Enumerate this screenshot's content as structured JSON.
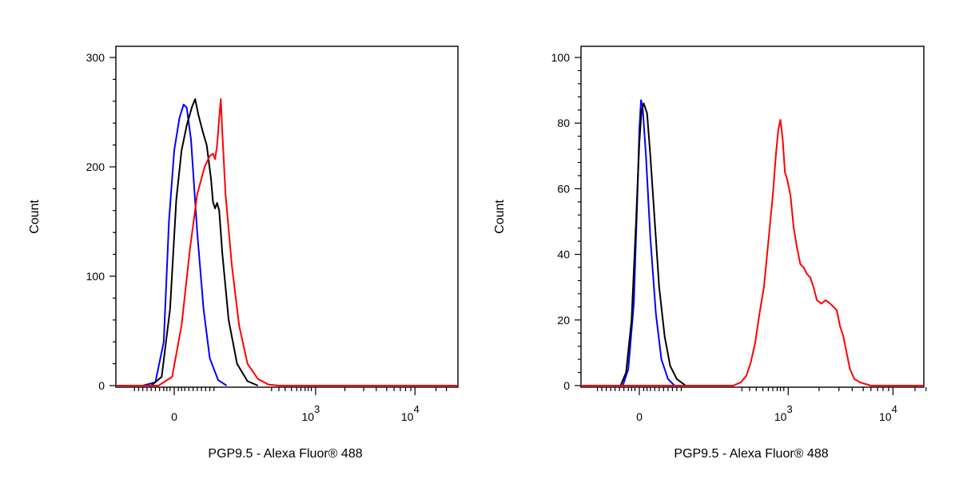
{
  "chart_data": [
    {
      "type": "line",
      "title": "",
      "xlabel": "PGP9.5 - Alexa Fluor® 488",
      "ylabel": "Count",
      "ylim": [
        0,
        300
      ],
      "yticks": [
        0,
        100,
        200,
        300
      ],
      "xticks": [
        {
          "label": "0",
          "exp": ""
        },
        {
          "label": "10",
          "exp": "3"
        },
        {
          "label": "10",
          "exp": "4"
        }
      ],
      "series": [
        {
          "color": "#0000ff",
          "points": [
            [
              -0.3,
              0
            ],
            [
              -0.18,
              3
            ],
            [
              -0.1,
              40
            ],
            [
              -0.05,
              150
            ],
            [
              0,
              215
            ],
            [
              0.05,
              245
            ],
            [
              0.09,
              257
            ],
            [
              0.12,
              254
            ],
            [
              0.16,
              225
            ],
            [
              0.22,
              140
            ],
            [
              0.28,
              70
            ],
            [
              0.34,
              25
            ],
            [
              0.42,
              5
            ],
            [
              0.5,
              0
            ]
          ]
        },
        {
          "color": "#000000",
          "points": [
            [
              -0.22,
              0
            ],
            [
              -0.12,
              8
            ],
            [
              -0.04,
              70
            ],
            [
              0.02,
              170
            ],
            [
              0.07,
              215
            ],
            [
              0.12,
              238
            ],
            [
              0.17,
              255
            ],
            [
              0.2,
              262
            ],
            [
              0.23,
              248
            ],
            [
              0.27,
              233
            ],
            [
              0.31,
              220
            ],
            [
              0.35,
              190
            ],
            [
              0.37,
              168
            ],
            [
              0.39,
              162
            ],
            [
              0.41,
              167
            ],
            [
              0.43,
              160
            ],
            [
              0.46,
              120
            ],
            [
              0.52,
              60
            ],
            [
              0.6,
              20
            ],
            [
              0.7,
              4
            ],
            [
              0.8,
              0
            ]
          ]
        },
        {
          "color": "#ff0000",
          "points": [
            [
              -0.15,
              0
            ],
            [
              -0.02,
              8
            ],
            [
              0.07,
              55
            ],
            [
              0.15,
              125
            ],
            [
              0.22,
              175
            ],
            [
              0.29,
              200
            ],
            [
              0.34,
              210
            ],
            [
              0.37,
              212
            ],
            [
              0.39,
              207
            ],
            [
              0.41,
              220
            ],
            [
              0.43,
              245
            ],
            [
              0.445,
              262
            ],
            [
              0.46,
              230
            ],
            [
              0.49,
              175
            ],
            [
              0.55,
              110
            ],
            [
              0.62,
              55
            ],
            [
              0.7,
              20
            ],
            [
              0.8,
              6
            ],
            [
              0.9,
              1
            ],
            [
              1.0,
              0
            ],
            [
              3.65,
              0
            ]
          ]
        }
      ]
    },
    {
      "type": "line",
      "title": "",
      "xlabel": "PGP9.5 - Alexa Fluor® 488",
      "ylabel": "Count",
      "ylim": [
        0,
        100
      ],
      "yticks": [
        0,
        20,
        40,
        60,
        80,
        100
      ],
      "xticks": [
        {
          "label": "0",
          "exp": ""
        },
        {
          "label": "10",
          "exp": "3"
        },
        {
          "label": "10",
          "exp": "4"
        }
      ],
      "series": [
        {
          "color": "#0000ff",
          "points": [
            [
              -0.15,
              0
            ],
            [
              -0.1,
              5
            ],
            [
              -0.05,
              25
            ],
            [
              -0.02,
              55
            ],
            [
              0,
              78
            ],
            [
              0.015,
              87
            ],
            [
              0.03,
              85
            ],
            [
              0.06,
              70
            ],
            [
              0.1,
              45
            ],
            [
              0.15,
              22
            ],
            [
              0.2,
              8
            ],
            [
              0.26,
              2
            ],
            [
              0.32,
              0
            ]
          ]
        },
        {
          "color": "#000000",
          "points": [
            [
              -0.17,
              0
            ],
            [
              -0.12,
              4
            ],
            [
              -0.07,
              20
            ],
            [
              -0.03,
              50
            ],
            [
              0,
              74
            ],
            [
              0.02,
              84
            ],
            [
              0.04,
              86
            ],
            [
              0.07,
              83
            ],
            [
              0.1,
              70
            ],
            [
              0.14,
              50
            ],
            [
              0.18,
              30
            ],
            [
              0.23,
              15
            ],
            [
              0.28,
              6
            ],
            [
              0.34,
              2
            ],
            [
              0.42,
              0
            ]
          ]
        },
        {
          "color": "#ff0000",
          "points": [
            [
              0.85,
              0
            ],
            [
              0.92,
              1
            ],
            [
              0.97,
              3
            ],
            [
              1.01,
              7
            ],
            [
              1.05,
              13
            ],
            [
              1.09,
              22
            ],
            [
              1.13,
              30
            ],
            [
              1.17,
              44
            ],
            [
              1.21,
              58
            ],
            [
              1.24,
              71
            ],
            [
              1.26,
              78
            ],
            [
              1.28,
              81
            ],
            [
              1.3,
              75
            ],
            [
              1.32,
              65
            ],
            [
              1.34,
              63
            ],
            [
              1.37,
              58
            ],
            [
              1.4,
              48
            ],
            [
              1.43,
              42
            ],
            [
              1.46,
              37
            ],
            [
              1.49,
              36
            ],
            [
              1.52,
              34
            ],
            [
              1.55,
              33
            ],
            [
              1.58,
              30
            ],
            [
              1.61,
              26
            ],
            [
              1.65,
              25
            ],
            [
              1.69,
              26
            ],
            [
              1.73,
              25
            ],
            [
              1.76,
              24
            ],
            [
              1.79,
              23
            ],
            [
              1.82,
              18
            ],
            [
              1.85,
              15
            ],
            [
              1.88,
              10
            ],
            [
              1.91,
              5
            ],
            [
              1.95,
              2
            ],
            [
              2.0,
              1
            ],
            [
              2.1,
              0
            ],
            [
              3.65,
              0
            ]
          ]
        }
      ]
    }
  ]
}
